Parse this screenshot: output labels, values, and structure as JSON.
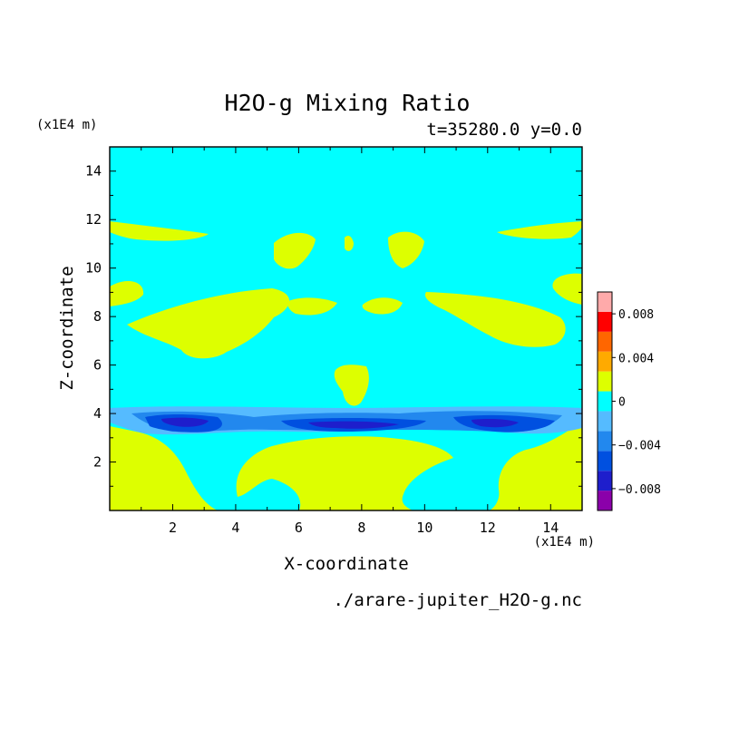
{
  "chart_data": {
    "type": "heatmap",
    "title": "H2O-g Mixing Ratio",
    "subtitle": "t=35280.0 y=0.0",
    "xlabel": "X-coordinate",
    "ylabel": "Z-coordinate",
    "x_unit": "(x1E4 m)",
    "y_unit": "(x1E4 m)",
    "source_file": "./arare-jupiter_H2O-g.nc",
    "xlim": [
      0,
      15
    ],
    "ylim": [
      0,
      15
    ],
    "x_ticks": [
      2,
      4,
      6,
      8,
      10,
      12,
      14
    ],
    "y_ticks": [
      2,
      4,
      6,
      8,
      10,
      12,
      14
    ],
    "x_tick_labels": [
      "2",
      "4",
      "6",
      "8",
      "10",
      "12",
      "14"
    ],
    "y_tick_labels": [
      "2",
      "4",
      "6",
      "8",
      "10",
      "12",
      "14"
    ],
    "colorbar": {
      "levels": [
        -0.01,
        -0.008,
        -0.006,
        -0.004,
        -0.002,
        0,
        0.002,
        0.004,
        0.006,
        0.008,
        0.01
      ],
      "colors": [
        "#8b00aa",
        "#1e1ecc",
        "#0050e0",
        "#2288ee",
        "#55bbff",
        "#00ffff",
        "#ddff00",
        "#ffaa00",
        "#ff6600",
        "#ff0000",
        "#ffaaaa"
      ],
      "tick_values": [
        0.008,
        0.004,
        0,
        -0.004,
        -0.008
      ],
      "tick_labels": [
        "0.008",
        "0.004",
        "0",
        "−0.004",
        "−0.008"
      ]
    },
    "background_color": "#00ffff",
    "positive_color": "#ddff00",
    "dominant_range": "-0.002 to 0.002"
  }
}
